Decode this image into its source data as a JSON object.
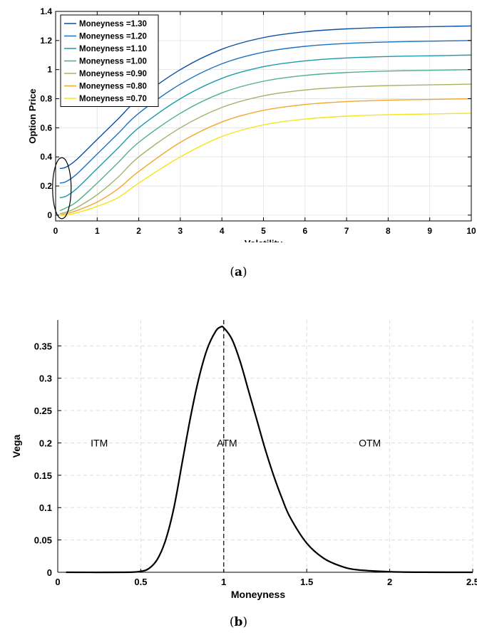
{
  "chart_data": [
    {
      "type": "line",
      "panel_label": "a",
      "xlabel": "Volatility",
      "ylabel": "Option Price",
      "xlim": [
        0,
        10
      ],
      "ylim": [
        -0.04,
        1.4
      ],
      "xticks": [
        0,
        1,
        2,
        3,
        4,
        5,
        6,
        7,
        8,
        9,
        10
      ],
      "yticks": [
        0,
        0.2,
        0.4,
        0.6,
        0.8,
        1,
        1.2,
        1.4
      ],
      "ytick_labels": [
        "0",
        "0.2",
        "0.4",
        "0.6",
        "0.8",
        "1",
        "1.2",
        "1.4"
      ],
      "grid": true,
      "legend_position": "top-left",
      "annotation": "ellipse around curves near volatility 0",
      "x": [
        0.1,
        0.25,
        0.5,
        1,
        1.5,
        2,
        3,
        4,
        5,
        6,
        7,
        8,
        9,
        10
      ],
      "series": [
        {
          "name": "Moneyness =1.30",
          "color": "#0a4fa6",
          "values": [
            0.32,
            0.33,
            0.38,
            0.52,
            0.66,
            0.8,
            1.0,
            1.14,
            1.22,
            1.26,
            1.28,
            1.29,
            1.295,
            1.3
          ]
        },
        {
          "name": "Moneyness =1.20",
          "color": "#1a73c0",
          "values": [
            0.22,
            0.23,
            0.28,
            0.42,
            0.56,
            0.7,
            0.9,
            1.04,
            1.12,
            1.16,
            1.18,
            1.19,
            1.195,
            1.2
          ]
        },
        {
          "name": "Moneyness =1.10",
          "color": "#1a9aaa",
          "values": [
            0.12,
            0.13,
            0.18,
            0.32,
            0.46,
            0.6,
            0.8,
            0.94,
            1.02,
            1.06,
            1.08,
            1.09,
            1.095,
            1.1
          ]
        },
        {
          "name": "Moneyness =1.00",
          "color": "#4fb08a",
          "values": [
            0.03,
            0.05,
            0.09,
            0.22,
            0.36,
            0.5,
            0.7,
            0.84,
            0.92,
            0.96,
            0.98,
            0.99,
            0.995,
            1.0
          ]
        },
        {
          "name": "Moneyness =0.90",
          "color": "#9fb56a",
          "values": [
            0.01,
            0.02,
            0.05,
            0.14,
            0.26,
            0.4,
            0.6,
            0.74,
            0.82,
            0.86,
            0.88,
            0.89,
            0.895,
            0.9
          ]
        },
        {
          "name": "Moneyness =0.80",
          "color": "#f3a72c",
          "values": [
            0.0,
            0.01,
            0.03,
            0.09,
            0.18,
            0.3,
            0.5,
            0.64,
            0.72,
            0.76,
            0.78,
            0.79,
            0.795,
            0.8
          ]
        },
        {
          "name": "Moneyness =0.70",
          "color": "#f5e51c",
          "values": [
            0.0,
            0.0,
            0.015,
            0.06,
            0.12,
            0.22,
            0.4,
            0.54,
            0.62,
            0.66,
            0.68,
            0.69,
            0.695,
            0.7
          ]
        }
      ]
    },
    {
      "type": "line",
      "panel_label": "b",
      "xlabel": "Moneyness",
      "ylabel": "Vega",
      "xlim": [
        0,
        2.5
      ],
      "ylim": [
        0,
        0.39
      ],
      "xticks": [
        0,
        0.5,
        1,
        1.5,
        2,
        2.5
      ],
      "xtick_labels": [
        "0",
        "0.5",
        "1",
        "1.5",
        "2",
        "2.5"
      ],
      "yticks": [
        0,
        0.05,
        0.1,
        0.15,
        0.2,
        0.25,
        0.3,
        0.35
      ],
      "ytick_labels": [
        "0",
        "0.05",
        "0.1",
        "0.15",
        "0.2",
        "0.25",
        "0.3",
        "0.35"
      ],
      "grid": "dashed",
      "vline_x": 1,
      "annotations": [
        {
          "text": "ITM",
          "x": 0.25,
          "y": 0.2
        },
        {
          "text": "ATM",
          "x": 1.02,
          "y": 0.2
        },
        {
          "text": "OTM",
          "x": 1.88,
          "y": 0.2
        }
      ],
      "series": [
        {
          "name": "",
          "color": "#000000",
          "x": [
            0.05,
            0.4,
            0.5,
            0.55,
            0.6,
            0.65,
            0.7,
            0.75,
            0.8,
            0.85,
            0.9,
            0.95,
            0.98,
            1.0,
            1.05,
            1.1,
            1.15,
            1.2,
            1.25,
            1.3,
            1.35,
            1.4,
            1.5,
            1.6,
            1.7,
            1.8,
            2.0,
            2.2,
            2.5
          ],
          "values": [
            0,
            0.0,
            0.0015,
            0.006,
            0.02,
            0.05,
            0.1,
            0.17,
            0.24,
            0.3,
            0.345,
            0.372,
            0.379,
            0.378,
            0.36,
            0.325,
            0.28,
            0.235,
            0.19,
            0.15,
            0.115,
            0.085,
            0.045,
            0.022,
            0.01,
            0.004,
            0.0008,
            0.0001,
            0
          ]
        }
      ]
    }
  ]
}
